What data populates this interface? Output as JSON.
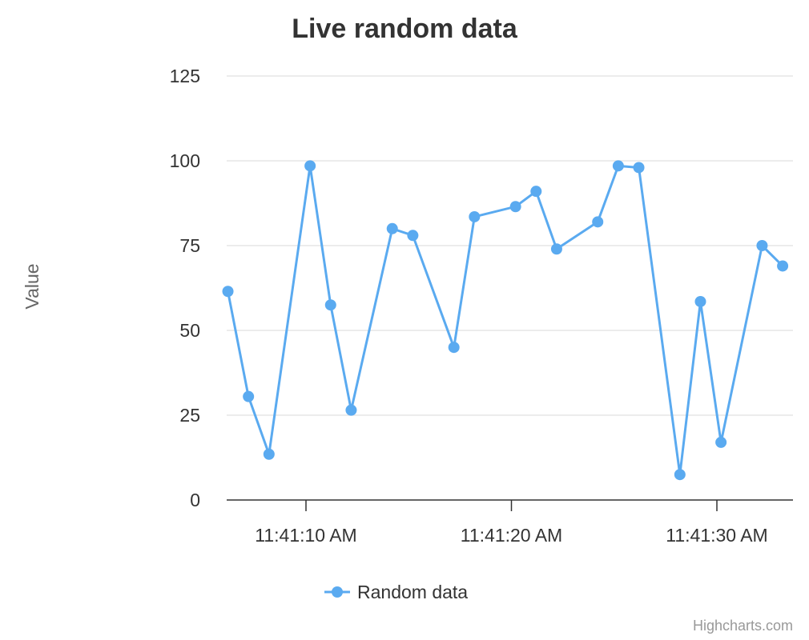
{
  "chart_data": {
    "type": "line",
    "title": "Live random data",
    "ylabel": "Value",
    "xlabel": "",
    "ylim": [
      0,
      125
    ],
    "y_ticks": [
      0,
      25,
      50,
      75,
      100,
      125
    ],
    "x_tick_labels": [
      "11:41:10 AM",
      "11:41:20 AM",
      "11:41:30 AM"
    ],
    "x_tick_seconds": [
      10,
      20,
      30
    ],
    "grid": true,
    "legend": "bottom-center",
    "series": [
      {
        "name": "Random data",
        "color": "#5aaaf0",
        "x": [
          6.2,
          7.2,
          8.2,
          10.2,
          11.2,
          12.2,
          14.2,
          15.2,
          17.2,
          18.2,
          20.2,
          21.2,
          22.2,
          24.2,
          25.2,
          26.2,
          28.2,
          29.2,
          30.2,
          32.2,
          33.2
        ],
        "values": [
          61.5,
          30.5,
          13.5,
          98.5,
          57.5,
          26.5,
          80,
          78,
          45,
          83.5,
          86.5,
          91,
          74,
          82,
          98.5,
          98,
          7.5,
          58.5,
          17,
          75,
          69
        ]
      }
    ]
  },
  "credits": "Highcharts.com"
}
